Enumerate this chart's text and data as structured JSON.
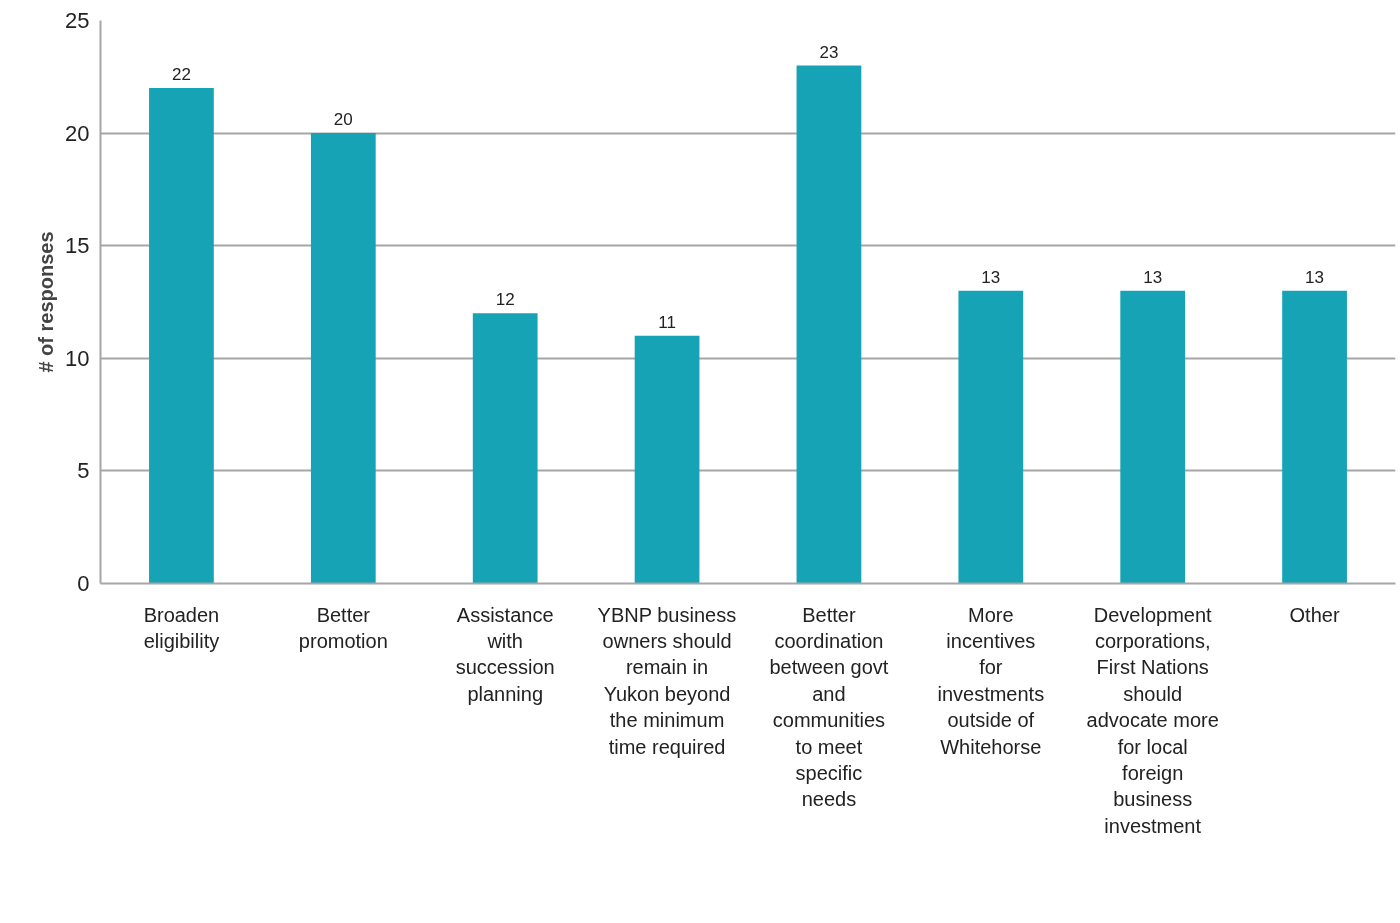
{
  "chart_data": {
    "type": "bar",
    "ylabel": "# of responses",
    "categories": [
      "Broaden eligibility",
      "Better promotion",
      "Assistance with succession planning",
      "YBNP business owners should remain in Yukon beyond the minimum time required",
      "Better coordination between govt and communities to meet specific needs",
      "More incentives for investments outside of Whitehorse",
      "Development corporations, First Nations should advocate more for local foreign business investment",
      "Other"
    ],
    "values": [
      22,
      20,
      12,
      11,
      23,
      13,
      13,
      13
    ],
    "color": "#17a3b6",
    "ylim": [
      0,
      25
    ],
    "yticks": [
      0,
      5,
      10,
      15,
      20,
      25
    ],
    "grid": "y",
    "data_labels": true
  }
}
